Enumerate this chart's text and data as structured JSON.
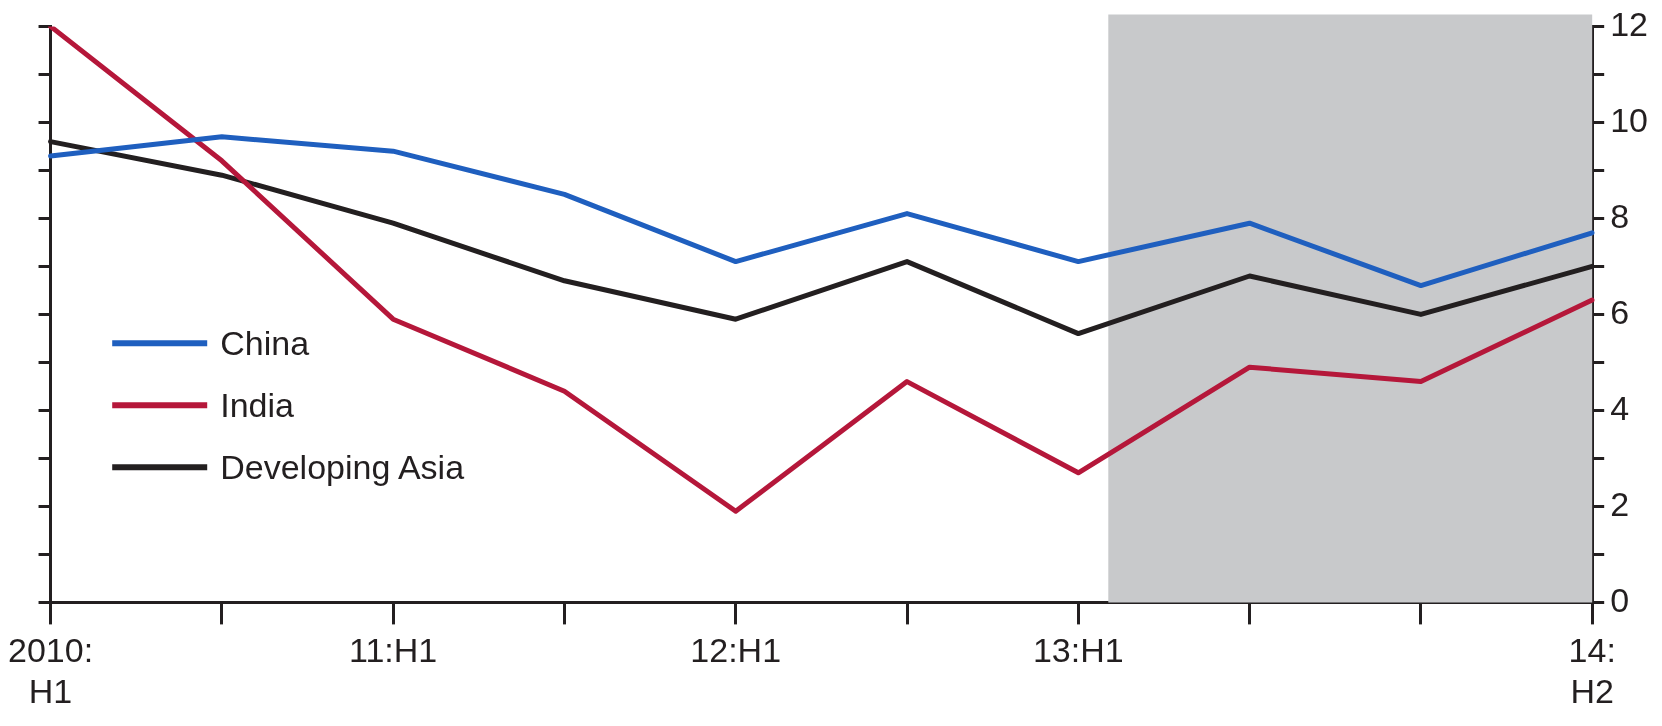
{
  "chart_data": {
    "type": "line",
    "categories": [
      "2010:\nH1",
      null,
      "11:H1",
      null,
      "12:H1",
      null,
      "13:H1",
      null,
      null,
      "14:\nH2"
    ],
    "ylim": [
      0,
      12
    ],
    "yticks": [
      0,
      {
        "value": 1,
        "label": null
      },
      2,
      {
        "value": 3,
        "label": null
      },
      4,
      {
        "value": 5,
        "label": null
      },
      6,
      {
        "value": 7,
        "label": null
      },
      8,
      {
        "value": 9,
        "label": null
      },
      10,
      {
        "value": 11,
        "label": null
      },
      12
    ],
    "series": [
      {
        "name": "China",
        "color": "#1f5fbf",
        "values": [
          9.3,
          9.7,
          9.4,
          8.5,
          7.1,
          8.1,
          7.1,
          7.9,
          6.6,
          7.7
        ]
      },
      {
        "name": "India",
        "color": "#b5173a",
        "values": [
          12.0,
          9.2,
          5.9,
          4.4,
          1.9,
          4.6,
          2.7,
          4.9,
          4.6,
          6.3
        ]
      },
      {
        "name": "Developing Asia",
        "color": "#231f20",
        "values": [
          9.6,
          8.9,
          7.9,
          6.7,
          5.9,
          7.1,
          5.6,
          6.8,
          6.0,
          7.0
        ]
      }
    ],
    "bands": [
      {
        "axis": "x",
        "from": "13:H1",
        "to": "14:\nH2",
        "color": "#c8c9cb"
      }
    ],
    "legend": "left",
    "grid": false,
    "marker": "none",
    "line_style": "solid"
  }
}
